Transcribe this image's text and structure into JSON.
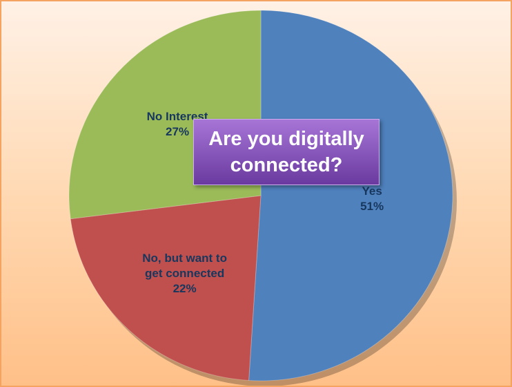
{
  "chart_data": {
    "type": "pie",
    "title": "Are you digitally connected?",
    "categories": [
      "Yes",
      "No, but want to get connected",
      "No Interest"
    ],
    "values": [
      51,
      22,
      27
    ],
    "value_labels": [
      "51%",
      "22%",
      "27%"
    ],
    "colors": [
      "#4f81bd",
      "#c0504d",
      "#9bbb59"
    ]
  }
}
